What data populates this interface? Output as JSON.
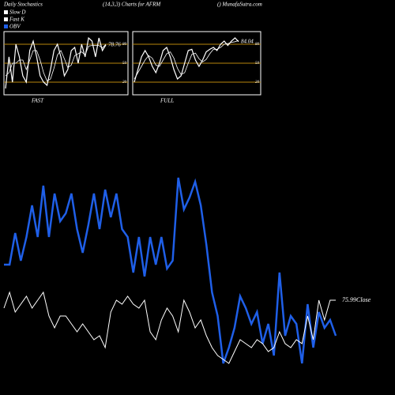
{
  "chart_data": [
    {
      "type": "line",
      "title": "Daily Stochastics",
      "subtitle": "(14,3,3) Charts for AFRM",
      "source": "() MunafaSutra.com",
      "xlabel": "FAST",
      "ylim": [
        0,
        100
      ],
      "yticks": [
        20,
        50,
        80
      ],
      "grid_color": "#b8860b",
      "series": [
        {
          "name": "Slow D",
          "color": "#ffffff",
          "values": [
            30,
            35,
            50,
            50,
            55,
            55,
            40,
            55,
            70,
            70,
            55,
            35,
            22,
            25,
            42,
            63,
            70,
            57,
            43,
            47,
            62,
            65,
            68,
            63,
            77,
            78,
            78,
            78,
            74,
            80
          ]
        },
        {
          "name": "Fast K",
          "color": "#ffffff",
          "values": [
            10,
            60,
            20,
            80,
            60,
            30,
            20,
            70,
            85,
            60,
            30,
            20,
            15,
            40,
            70,
            80,
            60,
            30,
            40,
            70,
            75,
            50,
            80,
            60,
            90,
            85,
            60,
            90,
            70,
            78.76
          ]
        }
      ]
    },
    {
      "type": "line",
      "xlabel": "FULL",
      "ylim": [
        0,
        100
      ],
      "yticks": [
        20,
        50,
        80
      ],
      "grid_color": "#b8860b",
      "series": [
        {
          "name": "Slow D",
          "color": "#ffffff",
          "values": [
            25,
            35,
            45,
            55,
            62,
            58,
            47,
            45,
            55,
            65,
            68,
            58,
            42,
            32,
            35,
            50,
            64,
            66,
            57,
            52,
            56,
            65,
            72,
            72,
            75,
            80,
            81,
            83,
            84,
            86
          ]
        },
        {
          "name": "Fast K",
          "color": "#ffffff",
          "values": [
            20,
            40,
            60,
            70,
            60,
            45,
            35,
            50,
            70,
            75,
            60,
            40,
            25,
            30,
            50,
            70,
            72,
            55,
            45,
            55,
            68,
            72,
            75,
            70,
            80,
            85,
            78,
            85,
            90,
            84.04
          ]
        }
      ]
    },
    {
      "type": "line",
      "ylim": [
        40,
        80
      ],
      "y2lim": [
        0,
        100
      ],
      "series": [
        {
          "name": "OBV",
          "color": "#1f5fe8",
          "axis": "y2",
          "values": [
            54,
            54,
            70,
            56,
            68,
            84,
            68,
            94,
            68,
            90,
            76,
            80,
            90,
            72,
            60,
            74,
            90,
            72,
            92,
            78,
            90,
            72,
            68,
            50,
            68,
            48,
            68,
            54,
            68,
            52,
            56,
            98,
            82,
            88,
            96,
            84,
            64,
            40,
            28,
            4,
            12,
            22,
            38,
            32,
            24,
            30,
            14,
            24,
            8,
            50,
            18,
            28,
            24,
            4,
            34,
            12,
            30,
            22,
            26,
            18
          ]
        },
        {
          "name": "Close",
          "color": "#ffffff",
          "values": [
            72,
            80,
            70,
            74,
            78,
            72,
            76,
            80,
            68,
            62,
            68,
            68,
            64,
            60,
            64,
            60,
            56,
            58,
            52,
            70,
            76,
            74,
            78,
            74,
            72,
            76,
            60,
            56,
            66,
            72,
            68,
            60,
            76,
            70,
            62,
            66,
            58,
            52,
            48,
            46,
            44,
            50,
            56,
            54,
            52,
            56,
            54,
            50,
            52,
            60,
            54,
            52,
            56,
            54,
            68,
            56,
            76,
            66,
            76,
            75.99
          ]
        }
      ]
    }
  ]
}
